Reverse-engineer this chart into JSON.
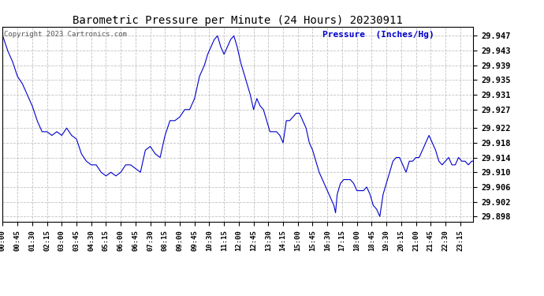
{
  "title": "Barometric Pressure per Minute (24 Hours) 20230911",
  "copyright_text": "Copyright 2023 Cartronics.com",
  "ylabel": "Pressure  (Inches/Hg)",
  "ylabel_color": "#0000cc",
  "line_color": "#0000cc",
  "background_color": "#ffffff",
  "grid_color": "#bbbbbb",
  "title_color": "#000000",
  "ylim": [
    29.8965,
    29.9495
  ],
  "yticks": [
    29.898,
    29.902,
    29.906,
    29.91,
    29.914,
    29.918,
    29.922,
    29.927,
    29.931,
    29.935,
    29.939,
    29.943,
    29.947
  ],
  "xtick_labels": [
    "00:00",
    "00:45",
    "01:30",
    "02:15",
    "03:00",
    "03:45",
    "04:30",
    "05:15",
    "06:00",
    "06:45",
    "07:30",
    "08:15",
    "09:00",
    "09:45",
    "10:30",
    "11:15",
    "12:00",
    "12:45",
    "13:30",
    "14:15",
    "15:00",
    "15:45",
    "16:30",
    "17:15",
    "18:00",
    "18:45",
    "19:30",
    "20:15",
    "21:00",
    "21:45",
    "22:30",
    "23:15"
  ],
  "key_points": {
    "0": 29.947,
    "15": 29.943,
    "30": 29.94,
    "45": 29.936,
    "60": 29.934,
    "75": 29.931,
    "90": 29.928,
    "105": 29.924,
    "120": 29.921,
    "135": 29.921,
    "150": 29.92,
    "165": 29.921,
    "180": 29.92,
    "195": 29.922,
    "210": 29.92,
    "225": 29.919,
    "240": 29.915,
    "255": 29.913,
    "270": 29.912,
    "285": 29.912,
    "300": 29.91,
    "315": 29.909,
    "330": 29.91,
    "345": 29.909,
    "360": 29.91,
    "375": 29.912,
    "390": 29.912,
    "405": 29.911,
    "420": 29.91,
    "435": 29.916,
    "450": 29.917,
    "465": 29.915,
    "480": 29.914,
    "495": 29.92,
    "510": 29.924,
    "525": 29.924,
    "540": 29.925,
    "555": 29.927,
    "570": 29.927,
    "585": 29.93,
    "600": 29.936,
    "615": 29.939,
    "625": 29.942,
    "635": 29.944,
    "645": 29.946,
    "655": 29.947,
    "665": 29.944,
    "675": 29.942,
    "685": 29.944,
    "695": 29.946,
    "705": 29.947,
    "715": 29.944,
    "725": 29.94,
    "735": 29.937,
    "745": 29.934,
    "755": 29.931,
    "765": 29.927,
    "775": 29.93,
    "785": 29.928,
    "795": 29.927,
    "805": 29.924,
    "815": 29.921,
    "825": 29.921,
    "835": 29.921,
    "845": 29.92,
    "855": 29.918,
    "865": 29.924,
    "875": 29.924,
    "885": 29.925,
    "895": 29.926,
    "905": 29.926,
    "915": 29.924,
    "925": 29.922,
    "935": 29.918,
    "945": 29.916,
    "955": 29.913,
    "965": 29.91,
    "975": 29.908,
    "985": 29.906,
    "995": 29.904,
    "1005": 29.902,
    "1010": 29.901,
    "1015": 29.899,
    "1020": 29.904,
    "1030": 29.907,
    "1040": 29.908,
    "1050": 29.908,
    "1060": 29.908,
    "1070": 29.907,
    "1080": 29.905,
    "1090": 29.905,
    "1100": 29.905,
    "1110": 29.906,
    "1120": 29.904,
    "1130": 29.901,
    "1140": 29.9,
    "1150": 29.898,
    "1160": 29.904,
    "1170": 29.907,
    "1180": 29.91,
    "1190": 29.913,
    "1200": 29.914,
    "1210": 29.914,
    "1220": 29.912,
    "1230": 29.91,
    "1240": 29.913,
    "1250": 29.913,
    "1260": 29.914,
    "1270": 29.914,
    "1280": 29.916,
    "1290": 29.918,
    "1300": 29.92,
    "1310": 29.918,
    "1320": 29.916,
    "1330": 29.913,
    "1340": 29.912,
    "1350": 29.913,
    "1360": 29.914,
    "1370": 29.912,
    "1380": 29.912,
    "1390": 29.914,
    "1400": 29.913,
    "1410": 29.913,
    "1420": 29.912,
    "1430": 29.913,
    "1435": 29.913
  }
}
